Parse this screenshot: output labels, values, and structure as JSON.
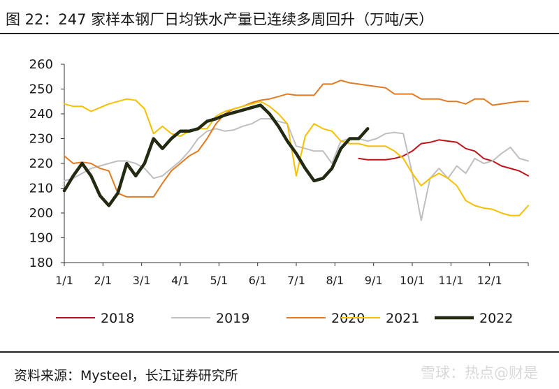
{
  "header": {
    "title": "图 22：247 家样本钢厂日均铁水产量已连续多周回升（万吨/天）"
  },
  "footer": {
    "source": "资料来源：Mysteel，长江证券研究所",
    "watermark": "雪球：热点@财是"
  },
  "chart_data": {
    "type": "line",
    "title": "图 22：247 家样本钢厂日均铁水产量已连续多周回升（万吨/天）",
    "xlabel": "",
    "ylabel": "",
    "x_ticks": [
      "1/1",
      "2/1",
      "3/1",
      "4/1",
      "5/1",
      "6/1",
      "7/1",
      "8/1",
      "9/1",
      "10/1",
      "11/1",
      "12/1"
    ],
    "y_ticks": [
      180,
      190,
      200,
      210,
      220,
      230,
      240,
      250,
      260
    ],
    "ylim": [
      180,
      260
    ],
    "x_unit": "week",
    "xlim": [
      1,
      53
    ],
    "grid": false,
    "legend_position": "bottom",
    "series": [
      {
        "name": "2018",
        "color": "#c0141c",
        "width": 2,
        "x": [
          34,
          35,
          36,
          37,
          38,
          39,
          40,
          41,
          42,
          43,
          44,
          45,
          46,
          47,
          48,
          49,
          50,
          51,
          52,
          53
        ],
        "y": [
          222,
          221.5,
          221.5,
          221.5,
          222,
          223,
          225,
          228,
          228.5,
          229.5,
          229,
          228.5,
          226,
          225,
          222,
          221,
          219,
          218,
          217,
          215
        ]
      },
      {
        "name": "2019",
        "color": "#bfbfbf",
        "width": 2,
        "x": [
          1,
          2,
          3,
          4,
          5,
          6,
          7,
          8,
          9,
          10,
          11,
          12,
          13,
          14,
          15,
          16,
          17,
          18,
          19,
          20,
          21,
          22,
          23,
          24,
          25,
          26,
          27,
          28,
          29,
          30,
          31,
          32,
          33,
          34,
          35,
          36,
          37,
          38,
          39,
          40,
          41,
          42,
          43,
          44,
          45,
          46,
          47,
          48,
          49,
          50,
          51,
          52,
          53
        ],
        "y": [
          213,
          214,
          216,
          218,
          219,
          220,
          221,
          221,
          220,
          218,
          214,
          215,
          218,
          221,
          225,
          230,
          233,
          234,
          233,
          233.5,
          235,
          236,
          238,
          238,
          237,
          236,
          227,
          226,
          225,
          225,
          220,
          229,
          230,
          230,
          229,
          230,
          232,
          232.5,
          232,
          216,
          197,
          214,
          218,
          214,
          219,
          216,
          222,
          220,
          221,
          224,
          226.5,
          222,
          221
        ]
      },
      {
        "name": "2020",
        "color": "#e07b22",
        "width": 2,
        "x": [
          1,
          2,
          3,
          4,
          5,
          6,
          7,
          8,
          9,
          10,
          11,
          12,
          13,
          14,
          15,
          16,
          17,
          18,
          19,
          20,
          21,
          22,
          23,
          24,
          25,
          26,
          27,
          28,
          29,
          30,
          31,
          32,
          33,
          34,
          35,
          36,
          37,
          38,
          39,
          40,
          41,
          42,
          43,
          44,
          45,
          46,
          47,
          48,
          49,
          50,
          51,
          52,
          53
        ],
        "y": [
          223,
          220,
          220.5,
          220,
          218,
          217,
          208,
          206.5,
          206.5,
          206.5,
          206.5,
          212,
          217,
          220,
          223,
          225,
          230,
          236,
          240,
          242,
          243,
          244.5,
          245.5,
          246,
          247,
          248,
          247.5,
          247.5,
          247.5,
          252,
          252,
          253.5,
          252.5,
          252,
          251.5,
          251,
          250.5,
          248,
          248,
          248,
          246,
          246,
          246,
          245,
          245,
          244,
          246,
          246,
          243.5,
          244,
          244.5,
          245,
          245
        ]
      },
      {
        "name": "2021",
        "color": "#f5c000",
        "width": 2,
        "x": [
          1,
          2,
          3,
          4,
          5,
          6,
          7,
          8,
          9,
          10,
          11,
          12,
          13,
          14,
          15,
          16,
          17,
          18,
          19,
          20,
          21,
          22,
          23,
          24,
          25,
          26,
          27,
          28,
          29,
          30,
          31,
          32,
          33,
          34,
          35,
          36,
          37,
          38,
          39,
          40,
          41,
          42,
          43,
          44,
          45,
          46,
          47,
          48,
          49,
          50,
          51,
          52,
          53
        ],
        "y": [
          244,
          243,
          243,
          241,
          242.5,
          244,
          245,
          246,
          245.5,
          242,
          232,
          235,
          232,
          231,
          233,
          234,
          234,
          239,
          241,
          242,
          243,
          244,
          245,
          243,
          240,
          236,
          215,
          231,
          236,
          234,
          233,
          229,
          228,
          228,
          227,
          227,
          227,
          225,
          222,
          216,
          211,
          214,
          216,
          214,
          211,
          205,
          203,
          202,
          201.5,
          200,
          199,
          199,
          203
        ]
      },
      {
        "name": "2022",
        "color": "#222a12",
        "width": 4.5,
        "x": [
          1,
          2,
          3,
          4,
          5,
          6,
          7,
          8,
          9,
          10,
          11,
          12,
          13,
          14,
          15,
          16,
          17,
          18,
          19,
          20,
          21,
          22,
          23,
          24,
          25,
          26,
          27,
          28,
          29,
          30,
          31,
          32,
          33,
          34,
          35
        ],
        "y": [
          209,
          215,
          220,
          215,
          207,
          203,
          208,
          220,
          215,
          220,
          230,
          226,
          230,
          233,
          233,
          234,
          237,
          238,
          239.5,
          240.5,
          241.5,
          242.5,
          243.5,
          240,
          235,
          229,
          224,
          218,
          213,
          214,
          218,
          226,
          230,
          230,
          234
        ]
      }
    ]
  }
}
